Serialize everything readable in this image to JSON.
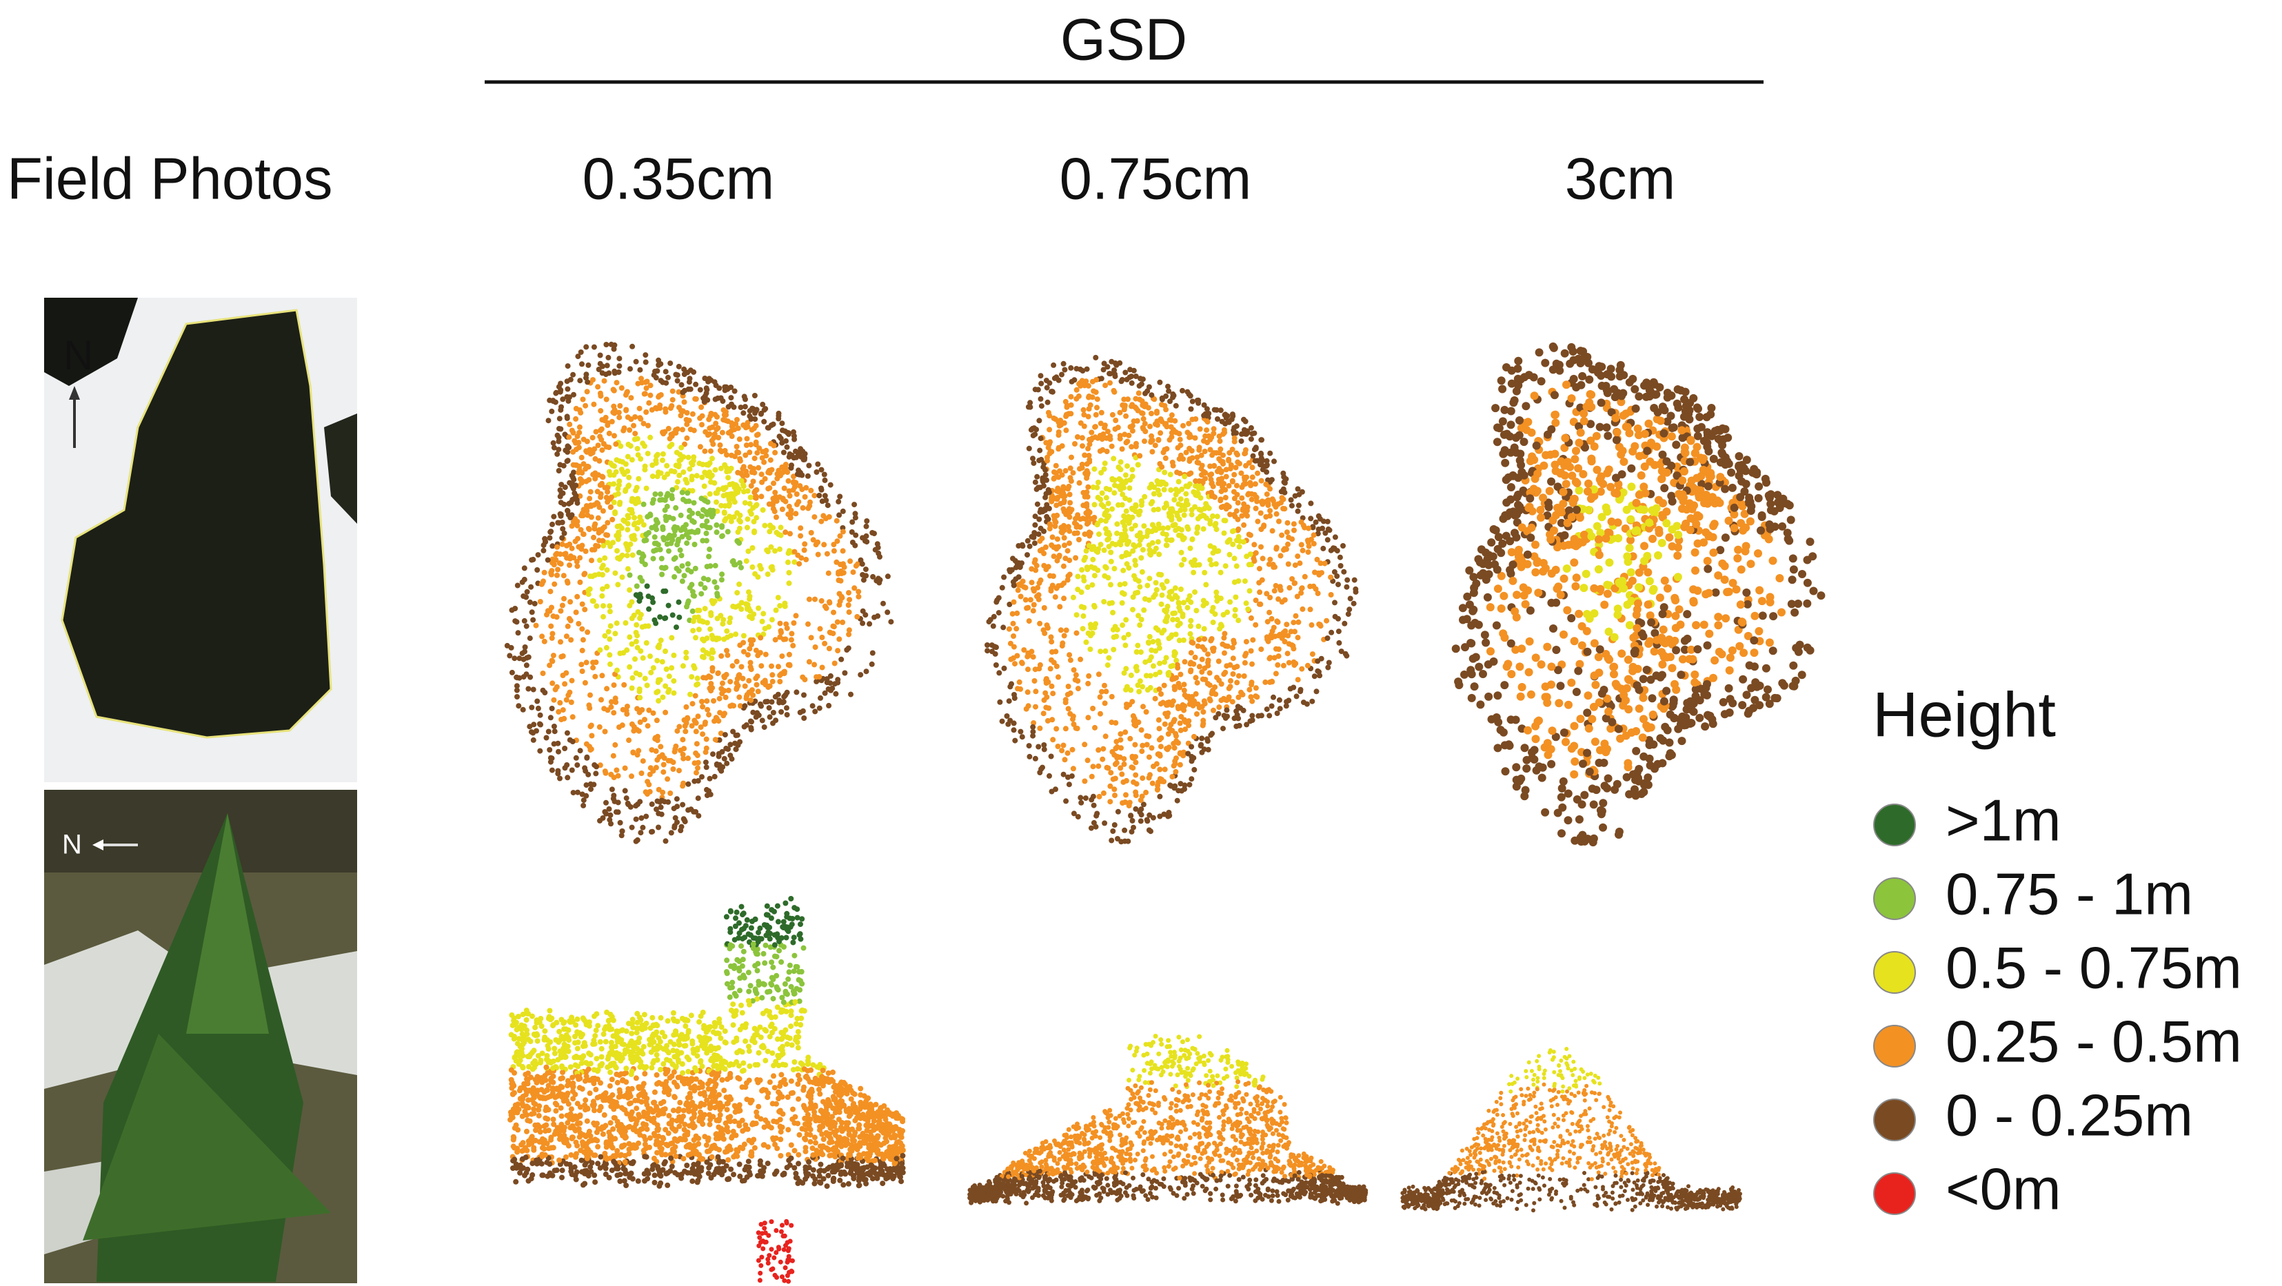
{
  "header": {
    "title": "GSD",
    "row_label": "Field Photos",
    "columns": [
      "0.35cm",
      "0.75cm",
      "3cm"
    ]
  },
  "photos": {
    "labels": [
      "N",
      "N"
    ]
  },
  "legend": {
    "title": "Height",
    "items": [
      {
        "label": ">1m",
        "color": "#2e6b2a"
      },
      {
        "label": "0.75 - 1m",
        "color": "#8cc43c"
      },
      {
        "label": "0.5 - 0.75m",
        "color": "#e6e21e"
      },
      {
        "label": "0.25 - 0.5m",
        "color": "#f39123"
      },
      {
        "label": "0 - 0.25m",
        "color": "#7a4a22"
      },
      {
        "label": "<0m",
        "color": "#e8231e"
      }
    ]
  }
}
